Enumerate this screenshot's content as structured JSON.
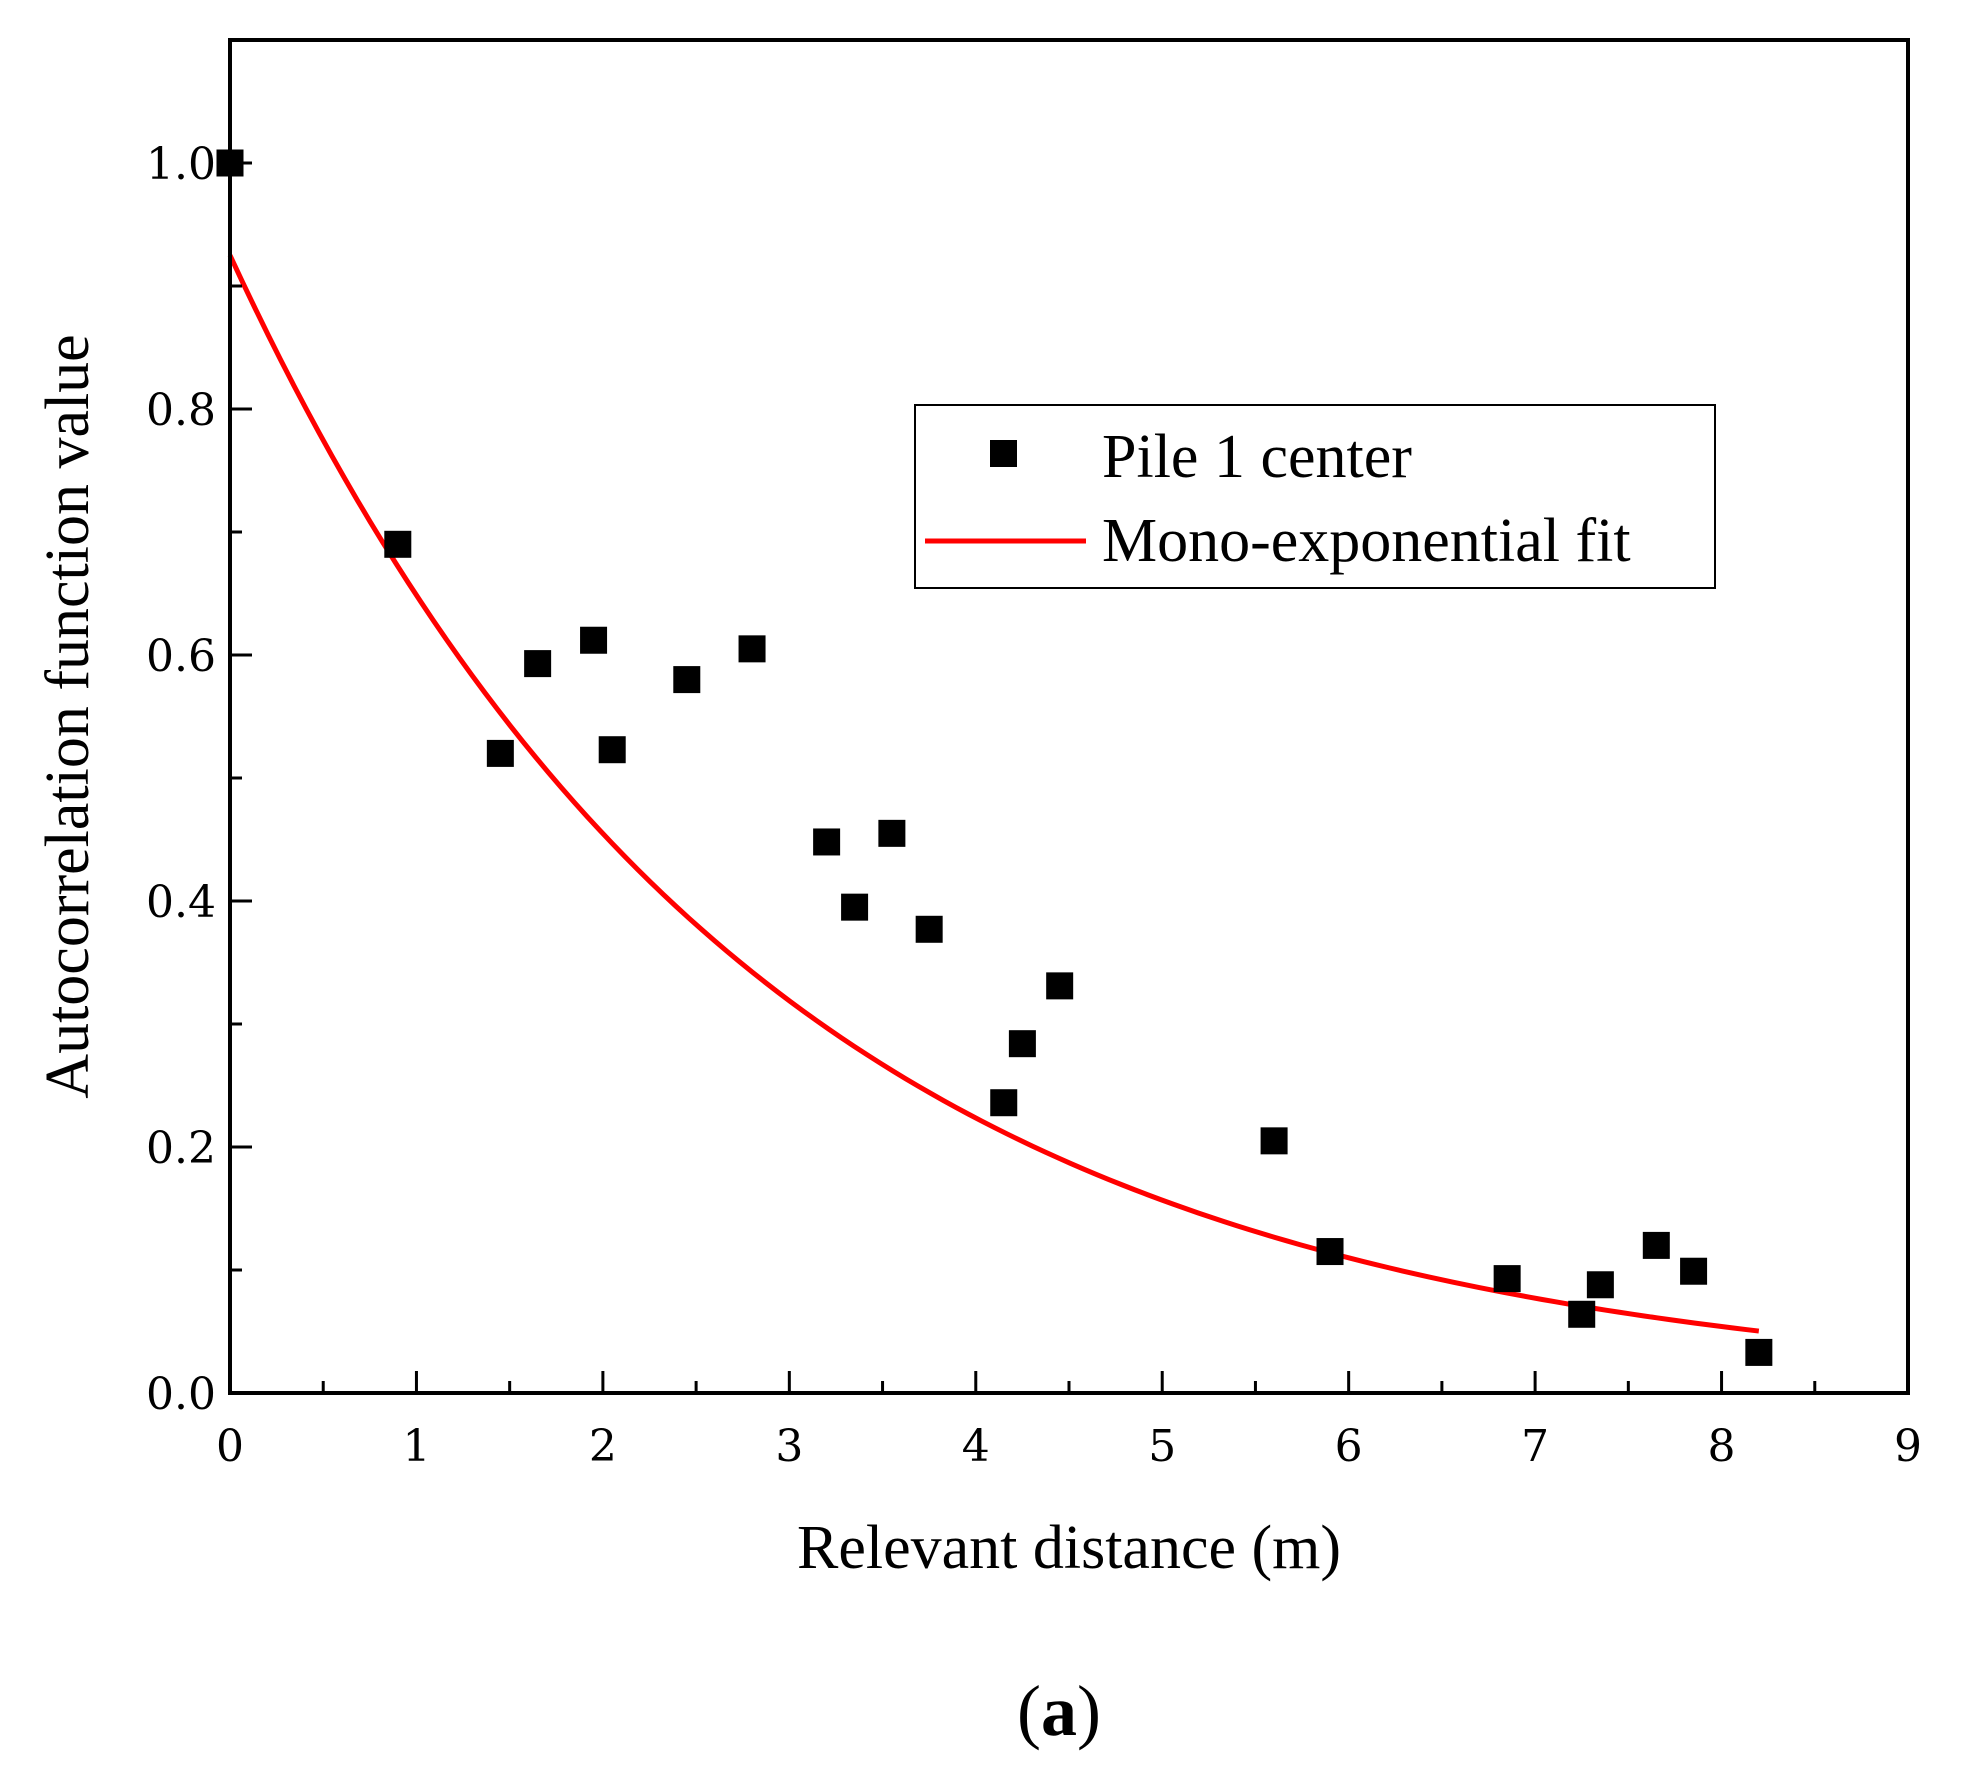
{
  "chart_data": {
    "type": "scatter",
    "title": "",
    "xlabel": "Relevant distance (m)",
    "ylabel": "Autocorrelation function value",
    "xlim": [
      0,
      9
    ],
    "ylim": [
      0,
      1.1
    ],
    "xticks": [
      0,
      1,
      2,
      3,
      4,
      5,
      6,
      7,
      8,
      9
    ],
    "xtick_labels": [
      "0",
      "1",
      "2",
      "3",
      "4",
      "5",
      "6",
      "7",
      "8",
      "9"
    ],
    "yticks": [
      0.0,
      0.2,
      0.4,
      0.6,
      0.8,
      1.0
    ],
    "ytick_labels": [
      "0.0",
      "0.2",
      "0.4",
      "0.6",
      "0.8",
      "1.0"
    ],
    "grid": false,
    "legend_position": "upper-right",
    "series": [
      {
        "name": "Pile 1 center",
        "kind": "scatter",
        "marker": "square",
        "color": "#000000",
        "x": [
          0.0,
          0.9,
          1.45,
          1.65,
          1.95,
          2.05,
          2.45,
          2.8,
          3.2,
          3.35,
          3.55,
          3.75,
          4.15,
          4.25,
          4.45,
          5.6,
          5.9,
          6.85,
          7.25,
          7.35,
          7.65,
          7.85,
          8.2
        ],
        "y": [
          1.0,
          0.69,
          0.52,
          0.593,
          0.612,
          0.523,
          0.58,
          0.605,
          0.448,
          0.395,
          0.455,
          0.377,
          0.236,
          0.284,
          0.331,
          0.205,
          0.115,
          0.093,
          0.064,
          0.088,
          0.12,
          0.099,
          0.033
        ]
      },
      {
        "name": "Mono-exponential fit",
        "kind": "line",
        "color": "#ff0000",
        "model": "y = a * exp(-b * x)",
        "a": 0.925,
        "b": 0.355,
        "x_range": [
          0,
          8.2
        ]
      }
    ]
  },
  "caption": {
    "open": "(",
    "letter": "a",
    "close": ")"
  }
}
